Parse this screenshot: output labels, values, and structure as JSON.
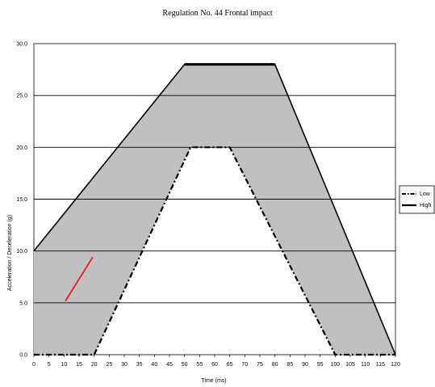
{
  "chart_data": {
    "type": "area",
    "title": "Regulation No. 44 Frontal impact",
    "xlabel": "Time (ms)",
    "ylabel": "Acceleration / Deceleration (g)",
    "xlim": [
      0,
      120
    ],
    "ylim": [
      0,
      30
    ],
    "x_ticks": [
      "0",
      "5",
      "10",
      "15",
      "20",
      "25",
      "30",
      "35",
      "40",
      "45",
      "50",
      "55",
      "60",
      "65",
      "70",
      "75",
      "80",
      "85",
      "90",
      "95",
      "100",
      "105",
      "110",
      "115",
      "120"
    ],
    "y_ticks": [
      "0.0",
      "5.0",
      "10.0",
      "15.0",
      "20.0",
      "25.0",
      "30.0"
    ],
    "grid": "horizontal",
    "legend_position": "right",
    "colors": {
      "band_fill": "#c0c0c0",
      "plot_background": "#ffffff",
      "gridline": "#000000",
      "low": "#000000",
      "high": "#000000",
      "trace": "#ff0000"
    },
    "series": [
      {
        "name": "Low",
        "style": "dash-dot",
        "x": [
          0,
          20,
          52,
          65,
          100,
          120
        ],
        "y": [
          0,
          0,
          20,
          20,
          0,
          0
        ]
      },
      {
        "name": "High",
        "style": "solid",
        "x": [
          0,
          50,
          80,
          120
        ],
        "y": [
          10,
          28,
          28,
          0
        ]
      },
      {
        "style": "solid",
        "x": [
          10.5,
          19.5
        ],
        "y": [
          5.2,
          9.4
        ]
      }
    ]
  }
}
